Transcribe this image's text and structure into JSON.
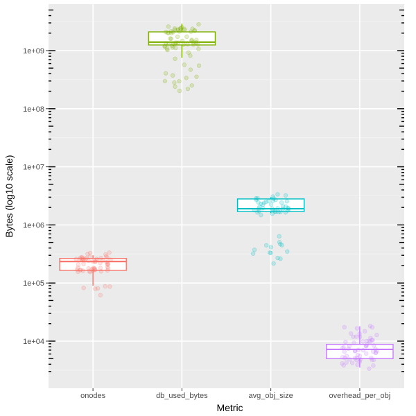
{
  "chart_data": {
    "type": "boxplot",
    "xlabel": "Metric",
    "ylabel": "Bytes (log10 scale)",
    "y_scale": "log10",
    "ylim": [
      2500,
      5000000000
    ],
    "y_ticks": [
      {
        "value": 10000,
        "label": "1e+04"
      },
      {
        "value": 100000,
        "label": "1e+05"
      },
      {
        "value": 1000000,
        "label": "1e+06"
      },
      {
        "value": 10000000,
        "label": "1e+07"
      },
      {
        "value": 100000000,
        "label": "1e+08"
      },
      {
        "value": 1000000000,
        "label": "1e+09"
      }
    ],
    "grid": true,
    "legend": "none",
    "categories": [
      "onodes",
      "db_used_bytes",
      "avg_obj_size",
      "overhead_per_obj"
    ],
    "series": [
      {
        "category": "onodes",
        "color": "#F8766D",
        "box": {
          "min": 90000,
          "q1": 165000,
          "median": 235000,
          "q3": 265000,
          "max": 300000
        },
        "points": [
          {
            "center": 170000,
            "spread": 0.03,
            "count": 22
          },
          {
            "center": 240000,
            "spread": 0.05,
            "count": 16
          },
          {
            "center": 270000,
            "spread": 0.04,
            "count": 16
          },
          {
            "center": 68000,
            "spread": 0.07,
            "count": 6
          }
        ]
      },
      {
        "category": "db_used_bytes",
        "color": "#7CAE00",
        "box": {
          "min": 750000000,
          "q1": 1250000000,
          "median": 1400000000,
          "q3": 2100000000,
          "max": 2900000000
        },
        "points": [
          {
            "center": 1300000000,
            "spread": 0.05,
            "count": 24
          },
          {
            "center": 2200000000,
            "spread": 0.05,
            "count": 24
          },
          {
            "center": 850000000,
            "spread": 0.07,
            "count": 5
          },
          {
            "center": 320000000,
            "spread": 0.12,
            "count": 14
          }
        ]
      },
      {
        "category": "avg_obj_size",
        "color": "#00BFC4",
        "box": {
          "min": 1600000,
          "q1": 1700000,
          "median": 1900000,
          "q3": 2800000,
          "max": 3000000
        },
        "points": [
          {
            "center": 1800000,
            "spread": 0.04,
            "count": 22
          },
          {
            "center": 2750000,
            "spread": 0.04,
            "count": 18
          },
          {
            "center": 380000,
            "spread": 0.08,
            "count": 14
          }
        ]
      },
      {
        "category": "overhead_per_obj",
        "color": "#C77CFF",
        "box": {
          "min": 3500,
          "q1": 5000,
          "median": 7200,
          "q3": 8800,
          "max": 18000
        },
        "points": [
          {
            "center": 5000,
            "spread": 0.06,
            "count": 18
          },
          {
            "center": 7500,
            "spread": 0.06,
            "count": 18
          },
          {
            "center": 12000,
            "spread": 0.07,
            "count": 14
          },
          {
            "center": 4000,
            "spread": 0.05,
            "count": 6
          },
          {
            "center": 15500,
            "spread": 0.04,
            "count": 4
          }
        ]
      }
    ]
  }
}
